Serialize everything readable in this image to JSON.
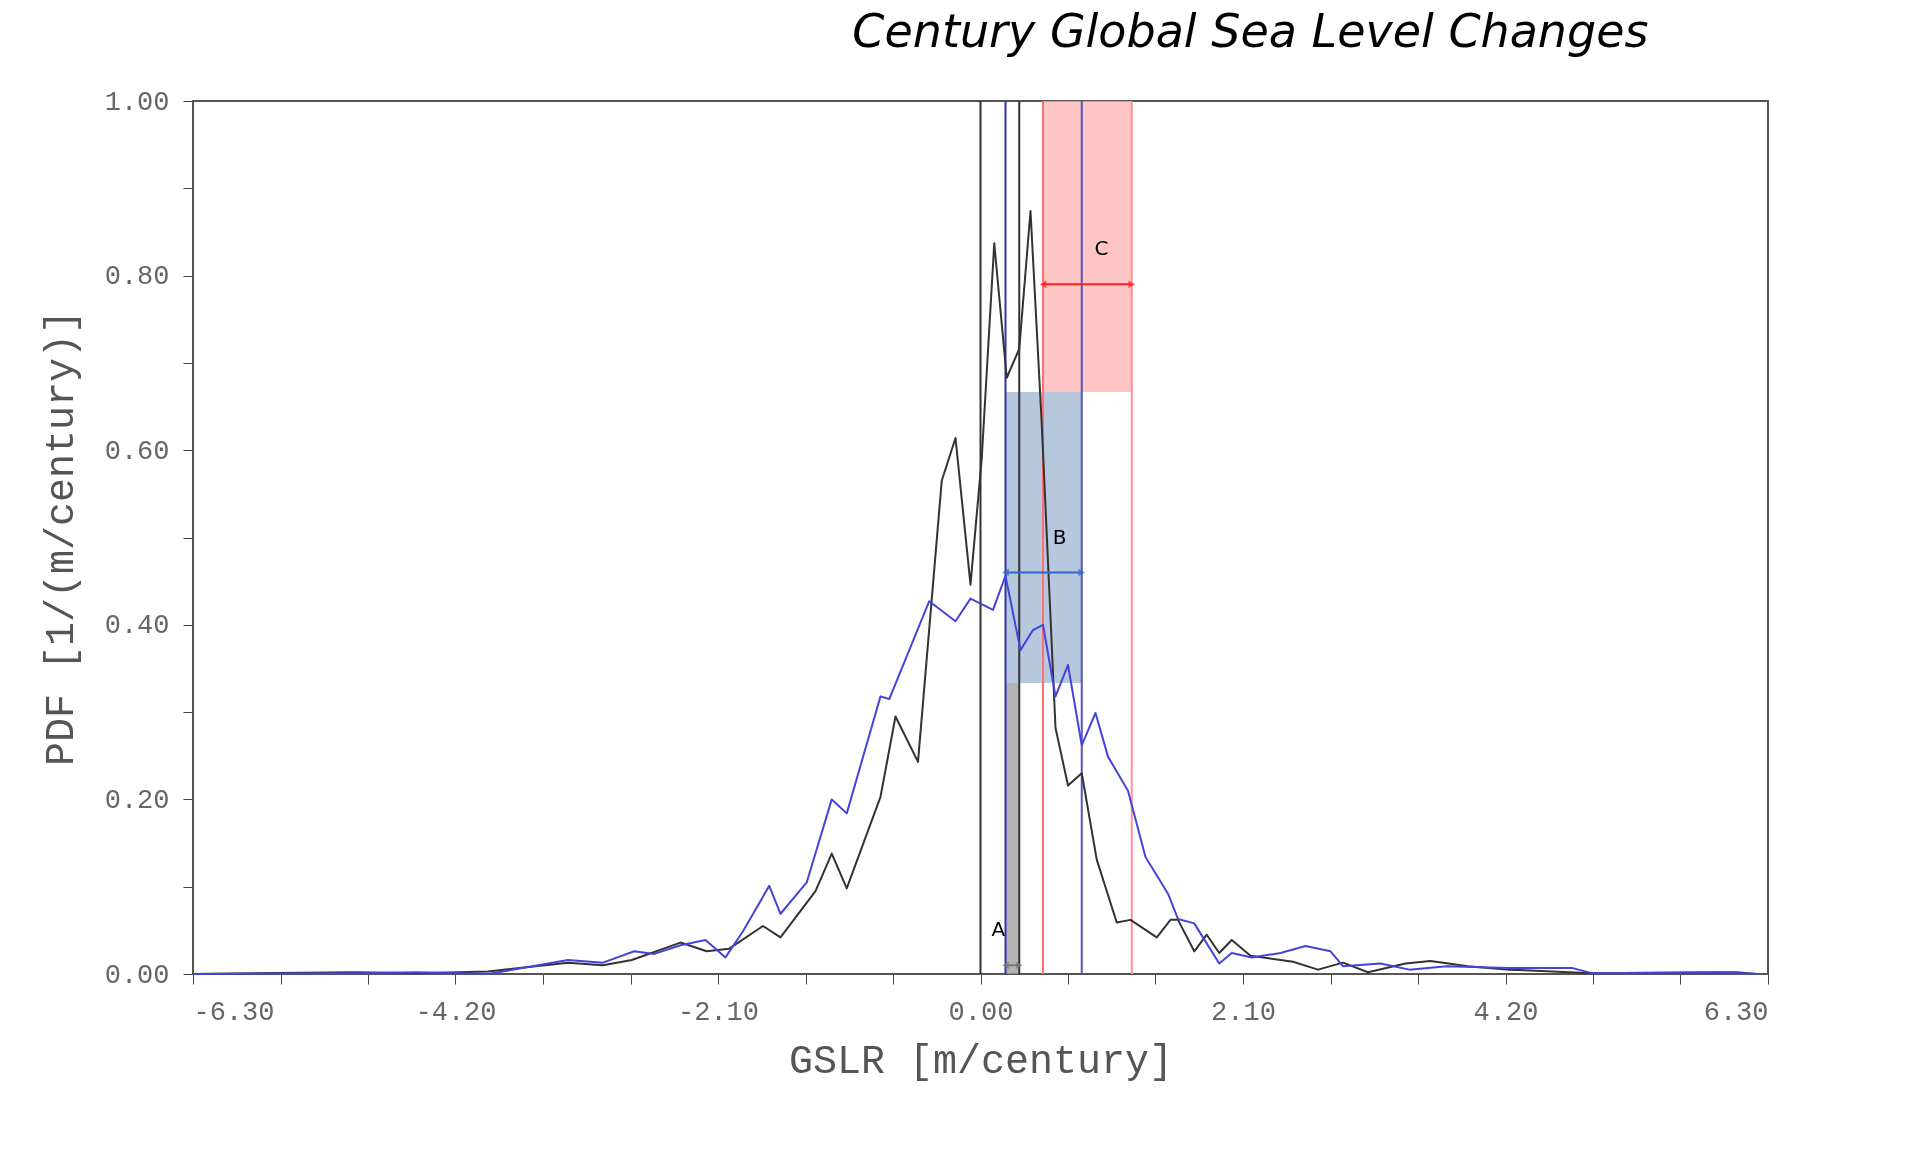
{
  "chart_data": {
    "type": "line",
    "title": "Century Global Sea Level Changes",
    "xlabel": "GSLR [m/century]",
    "ylabel": "PDF [1/(m/century)]",
    "xlim": [
      -6.3,
      6.3
    ],
    "xticks": [
      {
        "value": -6.3,
        "label": "-6.30"
      },
      {
        "value": -5.6,
        "label": null
      },
      {
        "value": -4.9,
        "label": null
      },
      {
        "value": -4.2,
        "label": "-4.20"
      },
      {
        "value": -3.5,
        "label": null
      },
      {
        "value": -2.8,
        "label": null
      },
      {
        "value": -2.1,
        "label": "-2.10"
      },
      {
        "value": -1.4,
        "label": null
      },
      {
        "value": -0.7,
        "label": null
      },
      {
        "value": 0,
        "label": "0.00"
      },
      {
        "value": 0.7,
        "label": null
      },
      {
        "value": 1.4,
        "label": null
      },
      {
        "value": 2.1,
        "label": "2.10"
      },
      {
        "value": 2.8,
        "label": null
      },
      {
        "value": 3.5,
        "label": null
      },
      {
        "value": 4.2,
        "label": "4.20"
      },
      {
        "value": 4.9,
        "label": null
      },
      {
        "value": 5.6,
        "label": null
      },
      {
        "value": 6.3,
        "label": "6.30"
      }
    ],
    "ylim": [
      0,
      1
    ],
    "yticks": [
      {
        "value": 0,
        "label": "0.00"
      },
      {
        "value": 0.1,
        "label": null
      },
      {
        "value": 0.2,
        "label": "0.20"
      },
      {
        "value": 0.3,
        "label": null
      },
      {
        "value": 0.4,
        "label": "0.40"
      },
      {
        "value": 0.5,
        "label": null
      },
      {
        "value": 0.6,
        "label": "0.60"
      },
      {
        "value": 0.7,
        "label": null
      },
      {
        "value": 0.8,
        "label": "0.80"
      },
      {
        "value": 0.9,
        "label": null
      },
      {
        "value": 1,
        "label": "1.00"
      }
    ],
    "grid": false,
    "marker": "none",
    "line_style": "solid",
    "series": [
      {
        "color": "#333333",
        "x": [
          -6.3,
          -5.0,
          -4.5,
          -3.94,
          -3.3,
          -3.02,
          -2.79,
          -2.4,
          -2.19,
          -2.01,
          -1.74,
          -1.6,
          -1.32,
          -1.19,
          -1.07,
          -0.8,
          -0.68,
          -0.5,
          -0.31,
          -0.2,
          -0.08,
          0.01,
          0.11,
          0.21,
          0.31,
          0.4,
          0.49,
          0.6,
          0.7,
          0.81,
          0.93,
          1.09,
          1.2,
          1.41,
          1.52,
          1.58,
          1.71,
          1.81,
          1.91,
          2.01,
          2.16,
          2.5,
          2.7,
          2.9,
          3.1,
          3.4,
          3.6,
          3.9,
          4.23,
          4.89,
          6.05,
          6.21
        ],
        "values": [
          0,
          0.002,
          0.001,
          0.003,
          0.013,
          0.01,
          0.016,
          0.036,
          0.026,
          0.029,
          0.055,
          0.042,
          0.095,
          0.138,
          0.098,
          0.203,
          0.295,
          0.243,
          0.565,
          0.614,
          0.446,
          0.591,
          0.837,
          0.683,
          0.716,
          0.874,
          0.63,
          0.282,
          0.216,
          0.23,
          0.131,
          0.059,
          0.062,
          0.042,
          0.062,
          0.062,
          0.026,
          0.045,
          0.024,
          0.039,
          0.021,
          0.014,
          0.005,
          0.013,
          0.002,
          0.012,
          0.015,
          0.009,
          0.005,
          0.001,
          0.002,
          0
        ]
      },
      {
        "color": "#4444dd",
        "x": [
          -6.3,
          -5.0,
          -4.5,
          -3.94,
          -3.3,
          -3.02,
          -2.77,
          -2.61,
          -2.4,
          -2.2,
          -2.04,
          -1.9,
          -1.69,
          -1.6,
          -1.39,
          -1.19,
          -1.07,
          -0.8,
          -0.73,
          -0.41,
          -0.2,
          -0.08,
          0.1,
          0.2,
          0.32,
          0.42,
          0.5,
          0.6,
          0.7,
          0.81,
          0.92,
          1.02,
          1.18,
          1.32,
          1.5,
          1.58,
          1.71,
          1.91,
          2.01,
          2.17,
          2.4,
          2.6,
          2.8,
          2.9,
          3.2,
          3.43,
          3.73,
          4.23,
          4.73,
          4.89,
          5.88,
          6.21
        ],
        "values": [
          0,
          0.001,
          0.002,
          0,
          0.016,
          0.013,
          0.026,
          0.023,
          0.033,
          0.039,
          0.019,
          0.049,
          0.101,
          0.069,
          0.105,
          0.2,
          0.184,
          0.318,
          0.315,
          0.427,
          0.404,
          0.43,
          0.417,
          0.456,
          0.371,
          0.394,
          0.4,
          0.318,
          0.354,
          0.262,
          0.299,
          0.249,
          0.21,
          0.134,
          0.092,
          0.063,
          0.058,
          0.012,
          0.024,
          0.019,
          0.024,
          0.032,
          0.026,
          0.009,
          0.012,
          0.005,
          0.009,
          0.007,
          0.007,
          0.001,
          0.002,
          0
        ]
      }
    ],
    "ref_lines": [
      {
        "axis": "x",
        "value": 0,
        "color": "#333333"
      },
      {
        "axis": "x",
        "value": 0.2,
        "color": "#3333aa"
      },
      {
        "axis": "x",
        "value": 0.31,
        "color": "#333333"
      },
      {
        "axis": "x",
        "value": 0.5,
        "color": "#ff7070"
      },
      {
        "axis": "x",
        "value": 0.81,
        "color": "#5555bb"
      },
      {
        "axis": "x",
        "value": 1.21,
        "color": "#ff9090"
      }
    ],
    "bands": [
      {
        "axis": "x",
        "from": 0.2,
        "to": 0.31,
        "color": "#999999"
      },
      {
        "axis": "x",
        "from": 0.2,
        "to": 0.81,
        "color": "#9fb4d2"
      },
      {
        "axis": "x",
        "from": 0.5,
        "to": 1.21,
        "color": "#ffb0b0"
      }
    ],
    "annotations": [
      "A",
      "B",
      "C"
    ]
  }
}
